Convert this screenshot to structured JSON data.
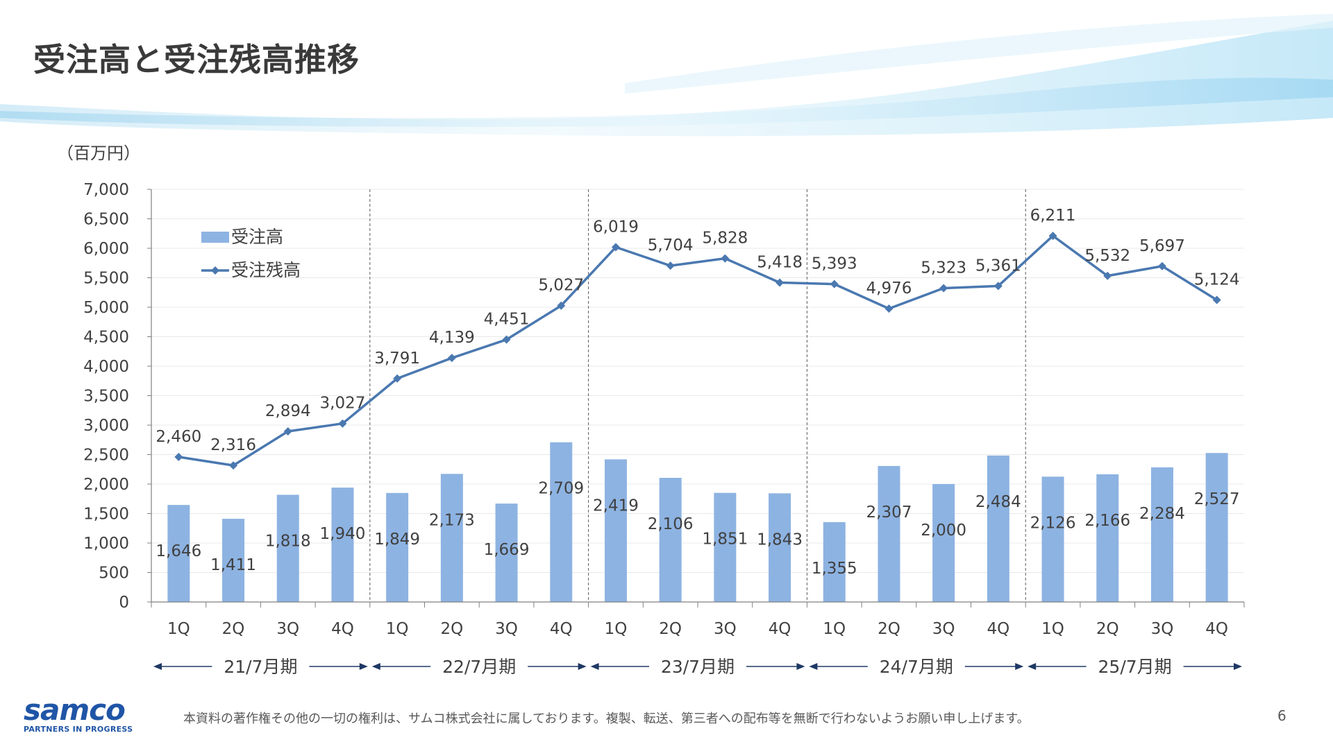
{
  "slide": {
    "title": "受注高と受注残高推移",
    "unit_label": "（百万円）",
    "footer_note": "本資料の著作権その他の一切の権利は、サムコ株式会社に属しております。複製、転送、第三者への配布等を無断で行わないようお願い申し上げます。",
    "page_number": "6",
    "logo_text": "samco",
    "logo_tagline": "PARTNERS IN PROGRESS"
  },
  "chart_data": {
    "type": "bar+line",
    "ylim": [
      0,
      7000
    ],
    "yticks": [
      0,
      500,
      1000,
      1500,
      2000,
      2500,
      3000,
      3500,
      4000,
      4500,
      5000,
      5500,
      6000,
      6500,
      7000
    ],
    "ytick_labels": [
      "0",
      "500",
      "1,000",
      "1,500",
      "2,000",
      "2,500",
      "3,000",
      "3,500",
      "4,000",
      "4,500",
      "5,000",
      "5,500",
      "6,000",
      "6,500",
      "7,000"
    ],
    "grid": true,
    "legend_position": "top-left",
    "categories": [
      "1Q",
      "2Q",
      "3Q",
      "4Q",
      "1Q",
      "2Q",
      "3Q",
      "4Q",
      "1Q",
      "2Q",
      "3Q",
      "4Q",
      "1Q",
      "2Q",
      "3Q",
      "4Q",
      "1Q",
      "2Q",
      "3Q",
      "4Q"
    ],
    "periods": [
      "21/7月期",
      "22/7月期",
      "23/7月期",
      "24/7月期",
      "25/7月期"
    ],
    "series": [
      {
        "name": "受注高",
        "type": "bar",
        "color": "#8db3e2",
        "values": [
          1646,
          1411,
          1818,
          1940,
          1849,
          2173,
          1669,
          2709,
          2419,
          2106,
          1851,
          1843,
          1355,
          2307,
          2000,
          2484,
          2126,
          2166,
          2284,
          2527
        ],
        "labels": [
          "1,646",
          "1,411",
          "1,818",
          "1,940",
          "1,849",
          "2,173",
          "1,669",
          "2,709",
          "2,419",
          "2,106",
          "1,851",
          "1,843",
          "1,355",
          "2,307",
          "2,000",
          "2,484",
          "2,126",
          "2,166",
          "2,284",
          "2,527"
        ]
      },
      {
        "name": "受注残高",
        "type": "line",
        "color": "#4a78b0",
        "values": [
          2460,
          2316,
          2894,
          3027,
          3791,
          4139,
          4451,
          5027,
          6019,
          5704,
          5828,
          5418,
          5393,
          4976,
          5323,
          5361,
          6211,
          5532,
          5697,
          5124
        ],
        "labels": [
          "2,460",
          "2,316",
          "2,894",
          "3,027",
          "3,791",
          "4,139",
          "4,451",
          "5,027",
          "6,019",
          "5,704",
          "5,828",
          "5,418",
          "5,393",
          "4,976",
          "5,323",
          "5,361",
          "6,211",
          "5,532",
          "5,697",
          "5,124"
        ]
      }
    ]
  }
}
